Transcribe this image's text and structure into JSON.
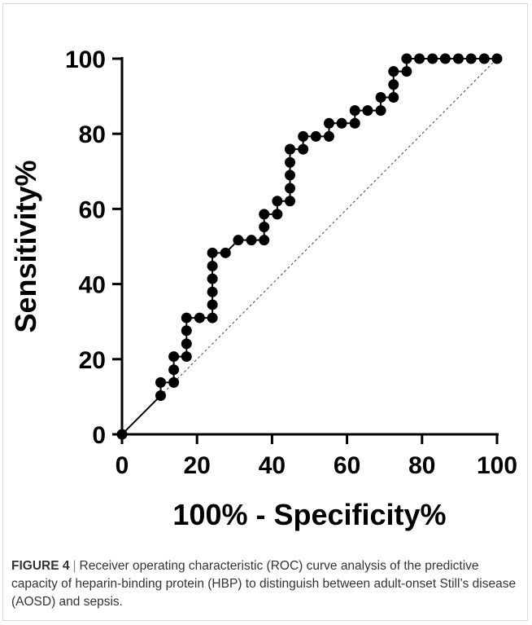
{
  "caption": {
    "label": "FIGURE 4",
    "separator": "|",
    "text": "Receiver operating characteristic (ROC) curve analysis of the predictive capacity of heparin-binding protein (HBP) to distinguish between adult-onset Still’s disease (AOSD) and sepsis."
  },
  "chart_data": {
    "type": "line",
    "title": "",
    "xlabel": "100% - Specificity%",
    "ylabel": "Sensitivity%",
    "xlim": [
      0,
      100
    ],
    "ylim": [
      0,
      100
    ],
    "xticks": [
      0,
      20,
      40,
      60,
      80,
      100
    ],
    "yticks": [
      0,
      20,
      40,
      60,
      80,
      100
    ],
    "grid": false,
    "reference_line": {
      "x": [
        0,
        100
      ],
      "y": [
        0,
        100
      ],
      "style": "dashed"
    },
    "series": [
      {
        "marker": "circle",
        "color": "#000000",
        "x": [
          0,
          10.3,
          10.3,
          13.8,
          13.8,
          13.8,
          17.2,
          17.2,
          17.2,
          17.2,
          20.7,
          24.1,
          24.1,
          24.1,
          24.1,
          24.1,
          24.1,
          27.6,
          31.0,
          34.5,
          37.9,
          37.9,
          37.9,
          41.4,
          41.4,
          44.8,
          44.8,
          44.8,
          44.8,
          44.8,
          44.8,
          48.3,
          48.3,
          51.7,
          55.2,
          55.2,
          58.6,
          62.1,
          62.1,
          65.5,
          69.0,
          69.0,
          72.4,
          72.4,
          72.4,
          75.9,
          75.9,
          79.3,
          82.8,
          86.2,
          89.7,
          93.1,
          96.6,
          100
        ],
        "y": [
          0,
          10.3,
          13.8,
          13.8,
          17.2,
          20.7,
          20.7,
          24.1,
          27.6,
          31.0,
          31.0,
          31.0,
          34.5,
          37.9,
          41.4,
          44.8,
          48.3,
          48.3,
          51.7,
          51.7,
          51.7,
          55.2,
          58.6,
          58.6,
          62.1,
          62.1,
          65.5,
          69.0,
          72.4,
          75.9,
          75.9,
          75.9,
          79.3,
          79.3,
          79.3,
          82.8,
          82.8,
          82.8,
          86.2,
          86.2,
          86.2,
          89.7,
          89.7,
          93.1,
          96.6,
          96.6,
          100,
          100,
          100,
          100,
          100,
          100,
          100,
          100
        ]
      }
    ]
  }
}
